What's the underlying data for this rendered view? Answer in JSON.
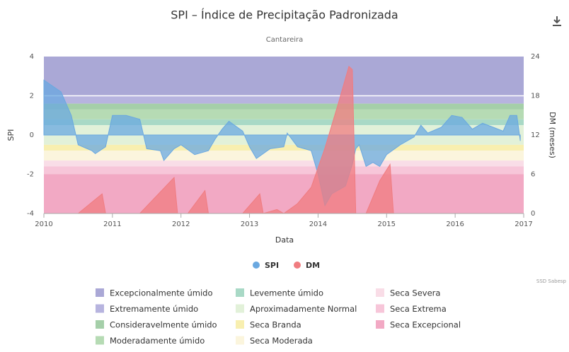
{
  "chart_data": {
    "type": "area",
    "title": "SPI – Índice de Precipitação Padronizada",
    "subtitle": "Cantareira",
    "x_label": "Data",
    "y_label": "SPI",
    "y2_label": "DM (meses)",
    "credit": "SSD Sabesp",
    "xlim": [
      2010,
      2017
    ],
    "xticks": [
      2010,
      2011,
      2012,
      2013,
      2014,
      2015,
      2016,
      2017
    ],
    "ylim": [
      -4,
      4
    ],
    "yticks": [
      -4,
      -2,
      0,
      2,
      4
    ],
    "y2lim": [
      0,
      24
    ],
    "y2ticks": [
      0,
      6,
      12,
      18,
      24
    ],
    "bands": [
      {
        "name": "Excepcionalmente úmido",
        "from": 2,
        "to": 4,
        "color": "#aaa8d6"
      },
      {
        "name": "Extremamente úmido",
        "from": 1.6,
        "to": 2,
        "color": "#b7b4df"
      },
      {
        "name": "Consideravelmente úmido",
        "from": 1.3,
        "to": 1.6,
        "color": "#a5cfa9"
      },
      {
        "name": "Moderadamente úmido",
        "from": 0.8,
        "to": 1.3,
        "color": "#b6dbb4"
      },
      {
        "name": "Levemente úmido",
        "from": 0.5,
        "to": 0.8,
        "color": "#a9d9c6"
      },
      {
        "name": "Aproximadamente Normal",
        "from": -0.5,
        "to": 0.5,
        "color": "#e2f1d9"
      },
      {
        "name": "Seca Branda",
        "from": -0.8,
        "to": -0.5,
        "color": "#f8efb0"
      },
      {
        "name": "Seca Moderada",
        "from": -1.3,
        "to": -0.8,
        "color": "#fbf5dd"
      },
      {
        "name": "Seca Severa",
        "from": -1.6,
        "to": -1.3,
        "color": "#f9dde7"
      },
      {
        "name": "Seca Extrema",
        "from": -2,
        "to": -1.6,
        "color": "#f7c6d9"
      },
      {
        "name": "Seca Excepcional",
        "from": -4,
        "to": -2,
        "color": "#f2a9c4"
      }
    ],
    "series": [
      {
        "name": "SPI",
        "color": "#6aa8e0",
        "x": [
          2010.0,
          2010.25,
          2010.4,
          2010.5,
          2010.7,
          2010.75,
          2010.9,
          2011.0,
          2011.2,
          2011.4,
          2011.5,
          2011.7,
          2011.75,
          2011.9,
          2012.0,
          2012.2,
          2012.4,
          2012.5,
          2012.6,
          2012.7,
          2012.9,
          2013.0,
          2013.1,
          2013.3,
          2013.5,
          2013.55,
          2013.7,
          2013.9,
          2014.0,
          2014.1,
          2014.2,
          2014.4,
          2014.5,
          2014.55,
          2014.6,
          2014.7,
          2014.8,
          2014.9,
          2015.0,
          2015.2,
          2015.4,
          2015.5,
          2015.6,
          2015.8,
          2015.95,
          2016.1,
          2016.25,
          2016.4,
          2016.55,
          2016.7,
          2016.8,
          2016.9,
          2016.95
        ],
        "values": [
          2.8,
          2.2,
          1.0,
          -0.5,
          -0.8,
          -0.95,
          -0.6,
          1.0,
          1.0,
          0.8,
          -0.7,
          -0.8,
          -1.3,
          -0.7,
          -0.5,
          -1.0,
          -0.8,
          -0.2,
          0.3,
          0.7,
          0.2,
          -0.6,
          -1.2,
          -0.7,
          -0.6,
          0.1,
          -0.6,
          -0.8,
          -2.0,
          -3.6,
          -3.0,
          -2.6,
          -1.5,
          -0.7,
          -0.5,
          -1.6,
          -1.4,
          -1.6,
          -1.0,
          -0.5,
          -0.1,
          0.5,
          0.1,
          0.4,
          1.0,
          0.9,
          0.3,
          0.6,
          0.4,
          0.2,
          1.0,
          1.0,
          -0.3
        ]
      },
      {
        "name": "DM",
        "color": "#f07c80",
        "axis": "y2",
        "x": [
          2010.5,
          2010.85,
          2010.9,
          2011.4,
          2011.9,
          2011.95,
          2012.1,
          2012.35,
          2012.4,
          2012.9,
          2013.15,
          2013.2,
          2013.4,
          2013.5,
          2013.7,
          2013.9,
          2014.1,
          2014.3,
          2014.45,
          2014.5,
          2014.55,
          2014.7,
          2014.9,
          2015.05,
          2015.1
        ],
        "values": [
          0,
          3,
          0,
          0,
          5.5,
          0,
          0,
          3.5,
          0,
          0,
          3,
          0,
          0.6,
          0,
          1.5,
          4,
          10,
          17,
          22.5,
          22,
          0,
          0,
          5,
          7.5,
          0
        ]
      }
    ]
  }
}
